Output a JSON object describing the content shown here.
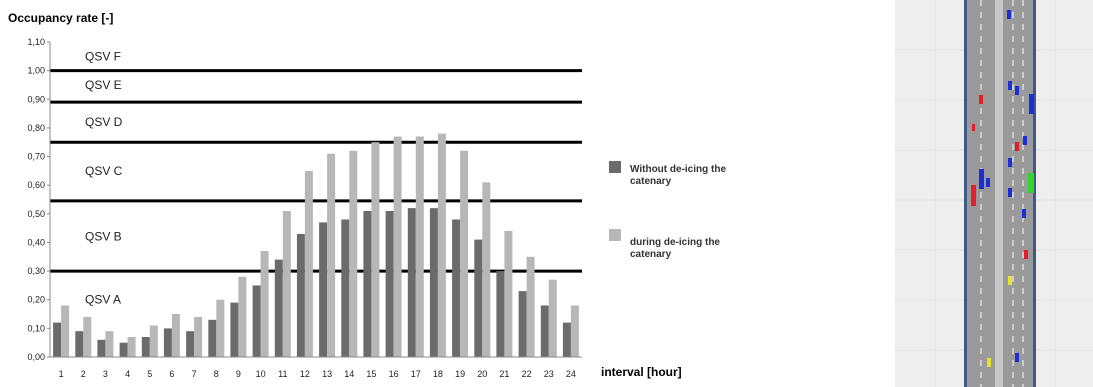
{
  "chart_data": {
    "type": "bar",
    "ylabel": "Occupancy rate [-]",
    "xlabel": "interval [hour]",
    "ylim": [
      0,
      1.1
    ],
    "y_ticks": [
      "0,00",
      "0,10",
      "0,20",
      "0,30",
      "0,40",
      "0,50",
      "0,60",
      "0,70",
      "0,80",
      "0,90",
      "1,00",
      "1,10"
    ],
    "categories": [
      "1",
      "2",
      "3",
      "4",
      "5",
      "6",
      "7",
      "8",
      "9",
      "10",
      "11",
      "12",
      "13",
      "14",
      "15",
      "16",
      "17",
      "18",
      "19",
      "20",
      "21",
      "22",
      "23",
      "24"
    ],
    "series": [
      {
        "name": "Without de-icing the catenary",
        "color": "#6b6b6b",
        "values": [
          0.12,
          0.09,
          0.06,
          0.05,
          0.07,
          0.1,
          0.09,
          0.13,
          0.19,
          0.25,
          0.34,
          0.43,
          0.47,
          0.48,
          0.51,
          0.51,
          0.52,
          0.52,
          0.48,
          0.41,
          0.3,
          0.23,
          0.18,
          0.12
        ]
      },
      {
        "name": "during de-icing the catenary",
        "color": "#b7b7b7",
        "values": [
          0.18,
          0.14,
          0.09,
          0.07,
          0.11,
          0.15,
          0.14,
          0.2,
          0.28,
          0.37,
          0.51,
          0.65,
          0.71,
          0.72,
          0.75,
          0.77,
          0.77,
          0.78,
          0.72,
          0.61,
          0.44,
          0.35,
          0.27,
          0.18
        ]
      }
    ],
    "level_lines": [
      {
        "label": "QSV A",
        "value": 0.3,
        "label_value": 0.2
      },
      {
        "label": "QSV B",
        "value": 0.545,
        "label_value": 0.42
      },
      {
        "label": "QSV C",
        "value": 0.75,
        "label_value": 0.65
      },
      {
        "label": "QSV D",
        "value": 0.89,
        "label_value": 0.82
      },
      {
        "label": "QSV E",
        "value": 1.0,
        "label_value": 0.95
      },
      {
        "label": "QSV F",
        "value": 1.1,
        "label_value": 1.05
      }
    ],
    "grid": false,
    "legend_position": "right"
  },
  "traffic_panel": {
    "road_color": "#9a9a9a",
    "edge_color": "#3f5a85",
    "background": "#eeeeee",
    "vehicle_colors": [
      "#1a2fd6",
      "#e0202a",
      "#31d62a",
      "#e8e22a"
    ]
  }
}
